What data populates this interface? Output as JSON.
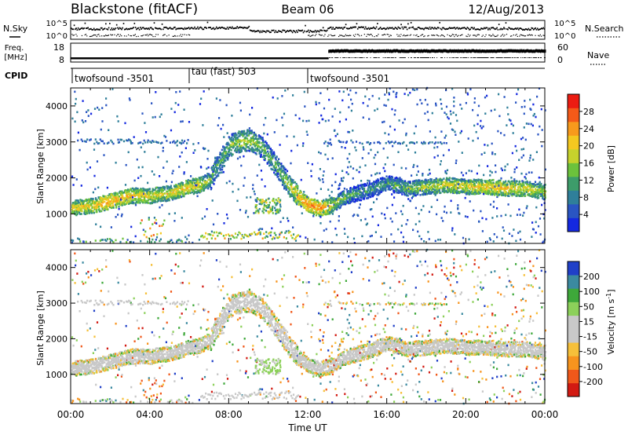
{
  "header": {
    "station": "Blackstone (fitACF)",
    "beam": "Beam 06",
    "date": "12/Aug/2013"
  },
  "noise_panel": {
    "left_label": "N.Sky",
    "left_ticks": [
      "10^5",
      "10^0"
    ],
    "right_ticks": [
      "10^5",
      "10^0"
    ],
    "right_label": "N.Search"
  },
  "freq_panel": {
    "left_label_1": "Freq.",
    "left_label_2": "[MHz]",
    "left_ticks": [
      "18",
      "8"
    ],
    "right_ticks": [
      "60",
      "0"
    ],
    "right_label": "Nave"
  },
  "cpid": {
    "label": "CPID",
    "segments": [
      {
        "name": "twofsound -3501",
        "start_hour": 0,
        "end_hour": 6
      },
      {
        "name": "tau (fast) 503",
        "start_hour": 6,
        "end_hour": 12
      },
      {
        "name": "twofsound -3501",
        "start_hour": 12,
        "end_hour": 24
      }
    ]
  },
  "chart_data": [
    {
      "type": "heatmap",
      "name": "power",
      "ylabel": "Slant Range [km]",
      "xlim": [
        0,
        24
      ],
      "ylim": [
        180,
        4500
      ],
      "yticks": [
        "1000",
        "2000",
        "3000",
        "4000"
      ],
      "colorbar": {
        "label": "Power [dB]",
        "ticks": [
          "28",
          "24",
          "20",
          "16",
          "12",
          "8",
          "4"
        ],
        "range": [
          0,
          30
        ],
        "colors": [
          "#1428e0",
          "#2a55c2",
          "#2f7f9a",
          "#3d9c6a",
          "#6cc23c",
          "#c6d22c",
          "#f4c820",
          "#f89a1c",
          "#f45a18",
          "#ec1c12"
        ]
      },
      "echo_band": {
        "hours": [
          0,
          1,
          2,
          3,
          4,
          5,
          6,
          6.5,
          7,
          7.5,
          8,
          8.5,
          9,
          9.5,
          10,
          10.5,
          11,
          11.5,
          12,
          12.5,
          13,
          13.5,
          14,
          15,
          16,
          17,
          18,
          19,
          20,
          21,
          22,
          23,
          24
        ],
        "range_km": [
          1150,
          1220,
          1350,
          1500,
          1500,
          1580,
          1750,
          1800,
          1950,
          2450,
          2900,
          3000,
          3050,
          2900,
          2600,
          2200,
          1800,
          1450,
          1250,
          1150,
          1200,
          1350,
          1500,
          1650,
          1850,
          1700,
          1750,
          1800,
          1750,
          1750,
          1700,
          1700,
          1600
        ],
        "power_db": [
          18,
          20,
          22,
          20,
          18,
          18,
          20,
          18,
          14,
          12,
          14,
          16,
          16,
          14,
          12,
          14,
          16,
          20,
          24,
          22,
          20,
          14,
          12,
          10,
          12,
          14,
          16,
          18,
          18,
          20,
          20,
          18,
          16
        ]
      }
    },
    {
      "type": "heatmap",
      "name": "velocity",
      "ylabel": "Slant Range [km]",
      "xlabel": "Time UT",
      "xlim": [
        0,
        24
      ],
      "ylim": [
        180,
        4500
      ],
      "yticks": [
        "1000",
        "2000",
        "3000",
        "4000"
      ],
      "xticks": [
        "00:00",
        "04:00",
        "08:00",
        "12:00",
        "16:00",
        "20:00",
        "00:00"
      ],
      "colorbar": {
        "label": "Velocity [m s^-1]",
        "ticks": [
          "200",
          "100",
          "50",
          "15",
          "-15",
          "-50",
          "-100",
          "-200"
        ],
        "range": [
          -250,
          250
        ],
        "colors": [
          "#d21a12",
          "#f0581a",
          "#f7941e",
          "#f6c03a",
          "#c8c8c8",
          "#c8c8c8",
          "#8cd05a",
          "#3ea83a",
          "#3b8aa0",
          "#2040c8"
        ]
      }
    }
  ]
}
